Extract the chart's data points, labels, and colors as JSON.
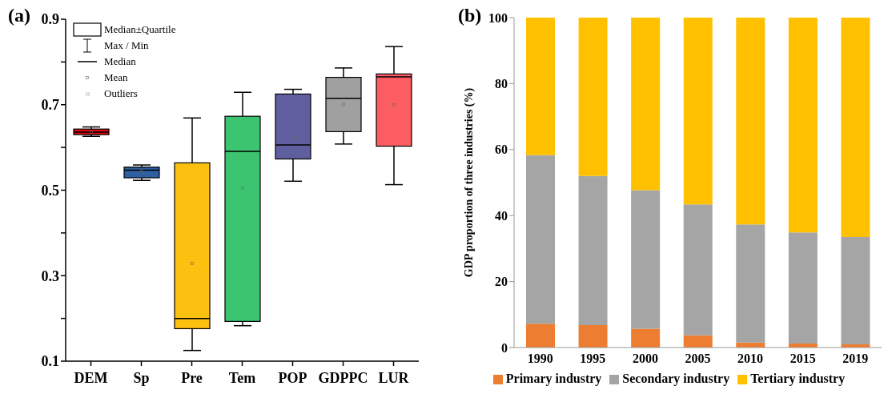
{
  "chart_data": [
    {
      "type": "box",
      "title": "(a)",
      "categories": [
        "DEM",
        "Sp",
        "Pre",
        "Tem",
        "POP",
        "GDPPC",
        "LUR"
      ],
      "boxes": [
        {
          "low": 0.626,
          "q1": 0.63,
          "median": 0.636,
          "q3": 0.643,
          "high": 0.648,
          "mean": 0.636
        },
        {
          "low": 0.523,
          "q1": 0.529,
          "median": 0.547,
          "q3": 0.554,
          "high": 0.559,
          "mean": 0.545
        },
        {
          "low": 0.125,
          "q1": 0.176,
          "median": 0.2,
          "q3": 0.564,
          "high": 0.669,
          "mean": 0.329
        },
        {
          "low": 0.183,
          "q1": 0.193,
          "median": 0.591,
          "q3": 0.673,
          "high": 0.729,
          "mean": 0.505
        },
        {
          "low": 0.521,
          "q1": 0.573,
          "median": 0.606,
          "q3": 0.725,
          "high": 0.736,
          "mean": 0.623
        },
        {
          "low": 0.608,
          "q1": 0.637,
          "median": 0.715,
          "q3": 0.764,
          "high": 0.786,
          "mean": 0.701
        },
        {
          "low": 0.513,
          "q1": 0.603,
          "median": 0.765,
          "q3": 0.772,
          "high": 0.836,
          "mean": 0.7
        }
      ],
      "colors": [
        "#e0000f",
        "#2e5fa0",
        "#fcc010",
        "#3cc471",
        "#5f5e9e",
        "#a0a0a0",
        "#fc5d63"
      ],
      "ylim": [
        0.1,
        0.9
      ],
      "yticks": [
        0.1,
        {
          "value": 0.2,
          "label": null
        },
        0.3,
        {
          "value": 0.4,
          "label": null
        },
        0.5,
        {
          "value": 0.6,
          "label": null
        },
        0.7,
        {
          "value": 0.8,
          "label": null
        },
        0.9
      ],
      "annotations": [
        "Median±Quartile",
        "Max / Min",
        "Median",
        "Mean",
        "Outliers"
      ]
    },
    {
      "type": "bar",
      "title": "(b)",
      "ylabel": "GDP proportion of three industries (%)",
      "categories": [
        "1990",
        "1995",
        "2000",
        "2005",
        "2010",
        "2015",
        "2019"
      ],
      "stacked": true,
      "series": [
        {
          "name": "Primary industry",
          "color": "#ed7d31",
          "values": [
            7.2,
            6.8,
            5.7,
            3.7,
            1.5,
            1.2,
            1.0
          ]
        },
        {
          "name": "Secondary industry",
          "color": "#a5a5a5",
          "values": [
            51.1,
            45.2,
            42.0,
            39.7,
            35.8,
            33.7,
            32.5
          ]
        },
        {
          "name": "Tertiary industry",
          "color": "#ffc000",
          "values": [
            41.7,
            48.0,
            52.3,
            56.6,
            62.7,
            65.1,
            66.5
          ]
        }
      ],
      "ylim": [
        0,
        100
      ],
      "yticks": [
        0,
        20,
        40,
        60,
        80,
        100
      ],
      "legend": "bottom"
    }
  ]
}
